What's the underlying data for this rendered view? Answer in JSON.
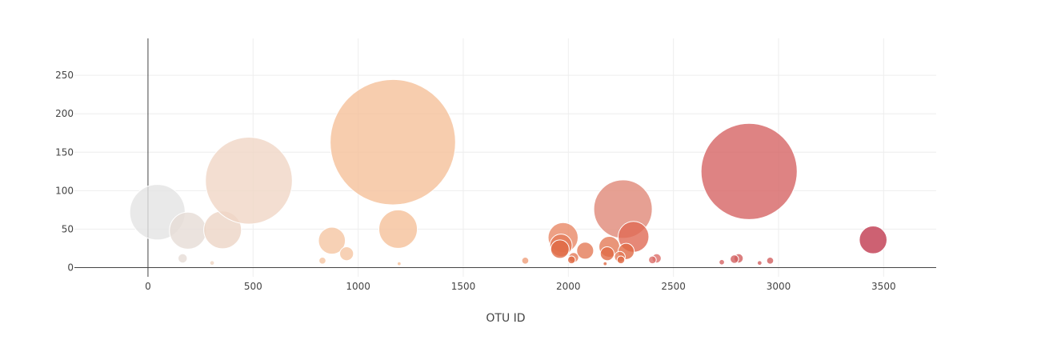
{
  "chart_data": {
    "type": "scatter",
    "title": "",
    "xlabel": "OTU ID",
    "ylabel": "",
    "xlim": [
      -350,
      3750
    ],
    "ylim": [
      -12,
      298
    ],
    "x_ticks": [
      0,
      500,
      1000,
      1500,
      2000,
      2500,
      3000,
      3500
    ],
    "y_ticks": [
      0,
      50,
      100,
      150,
      200,
      250
    ],
    "grid": true,
    "legend": "none",
    "marker_size_encoding": "sample value",
    "color_scale": [
      "#e3e3e3",
      "#f2dccf",
      "#f5c09a",
      "#ee9b78",
      "#e06a55",
      "#d25f5f",
      "#c0394f"
    ],
    "points": [
      {
        "x": 45,
        "y": 72,
        "size": 72,
        "color": "#e3e3e3"
      },
      {
        "x": 190,
        "y": 48,
        "size": 48,
        "color": "#e6dcd6"
      },
      {
        "x": 355,
        "y": 49,
        "size": 49,
        "color": "#ecd5c6"
      },
      {
        "x": 480,
        "y": 113,
        "size": 113,
        "color": "#f0d6c6"
      },
      {
        "x": 165,
        "y": 12,
        "size": 12,
        "color": "#e6dcd6"
      },
      {
        "x": 305,
        "y": 6,
        "size": 6,
        "color": "#eed4c2"
      },
      {
        "x": 875,
        "y": 35,
        "size": 35,
        "color": "#f5c5a3"
      },
      {
        "x": 945,
        "y": 18,
        "size": 18,
        "color": "#f5c5a3"
      },
      {
        "x": 830,
        "y": 9,
        "size": 9,
        "color": "#f5c5a3"
      },
      {
        "x": 1165,
        "y": 163,
        "size": 163,
        "color": "#f5c09a"
      },
      {
        "x": 1190,
        "y": 50,
        "size": 50,
        "color": "#f5c09a"
      },
      {
        "x": 1195,
        "y": 5,
        "size": 5,
        "color": "#f5c09a"
      },
      {
        "x": 1795,
        "y": 9,
        "size": 9,
        "color": "#ef9f7b"
      },
      {
        "x": 1975,
        "y": 39,
        "size": 39,
        "color": "#e88866"
      },
      {
        "x": 1965,
        "y": 29,
        "size": 29,
        "color": "#e37a58"
      },
      {
        "x": 1960,
        "y": 24,
        "size": 24,
        "color": "#e06a45"
      },
      {
        "x": 2025,
        "y": 13,
        "size": 13,
        "color": "#e37a58"
      },
      {
        "x": 2015,
        "y": 10,
        "size": 10,
        "color": "#e06a45"
      },
      {
        "x": 2080,
        "y": 22,
        "size": 22,
        "color": "#e37a58"
      },
      {
        "x": 2195,
        "y": 27,
        "size": 27,
        "color": "#e37a58"
      },
      {
        "x": 2185,
        "y": 18,
        "size": 18,
        "color": "#e06a45"
      },
      {
        "x": 2260,
        "y": 76,
        "size": 76,
        "color": "#e08878"
      },
      {
        "x": 2310,
        "y": 40,
        "size": 40,
        "color": "#e06a55"
      },
      {
        "x": 2275,
        "y": 21,
        "size": 21,
        "color": "#e06a45"
      },
      {
        "x": 2245,
        "y": 14,
        "size": 14,
        "color": "#e37a58"
      },
      {
        "x": 2250,
        "y": 10,
        "size": 10,
        "color": "#e06a45"
      },
      {
        "x": 2175,
        "y": 5,
        "size": 5,
        "color": "#e06a45"
      },
      {
        "x": 2420,
        "y": 12,
        "size": 12,
        "color": "#dc6f6a"
      },
      {
        "x": 2400,
        "y": 10,
        "size": 10,
        "color": "#dc6f6a"
      },
      {
        "x": 2860,
        "y": 125,
        "size": 125,
        "color": "#d66464"
      },
      {
        "x": 2730,
        "y": 7,
        "size": 7,
        "color": "#d66464"
      },
      {
        "x": 2810,
        "y": 12,
        "size": 12,
        "color": "#d25f5f"
      },
      {
        "x": 2790,
        "y": 11,
        "size": 11,
        "color": "#d25f5f"
      },
      {
        "x": 2910,
        "y": 6,
        "size": 6,
        "color": "#d25f5f"
      },
      {
        "x": 2960,
        "y": 9,
        "size": 9,
        "color": "#d25f5f"
      },
      {
        "x": 3450,
        "y": 36,
        "size": 36,
        "color": "#c0394f"
      }
    ]
  }
}
